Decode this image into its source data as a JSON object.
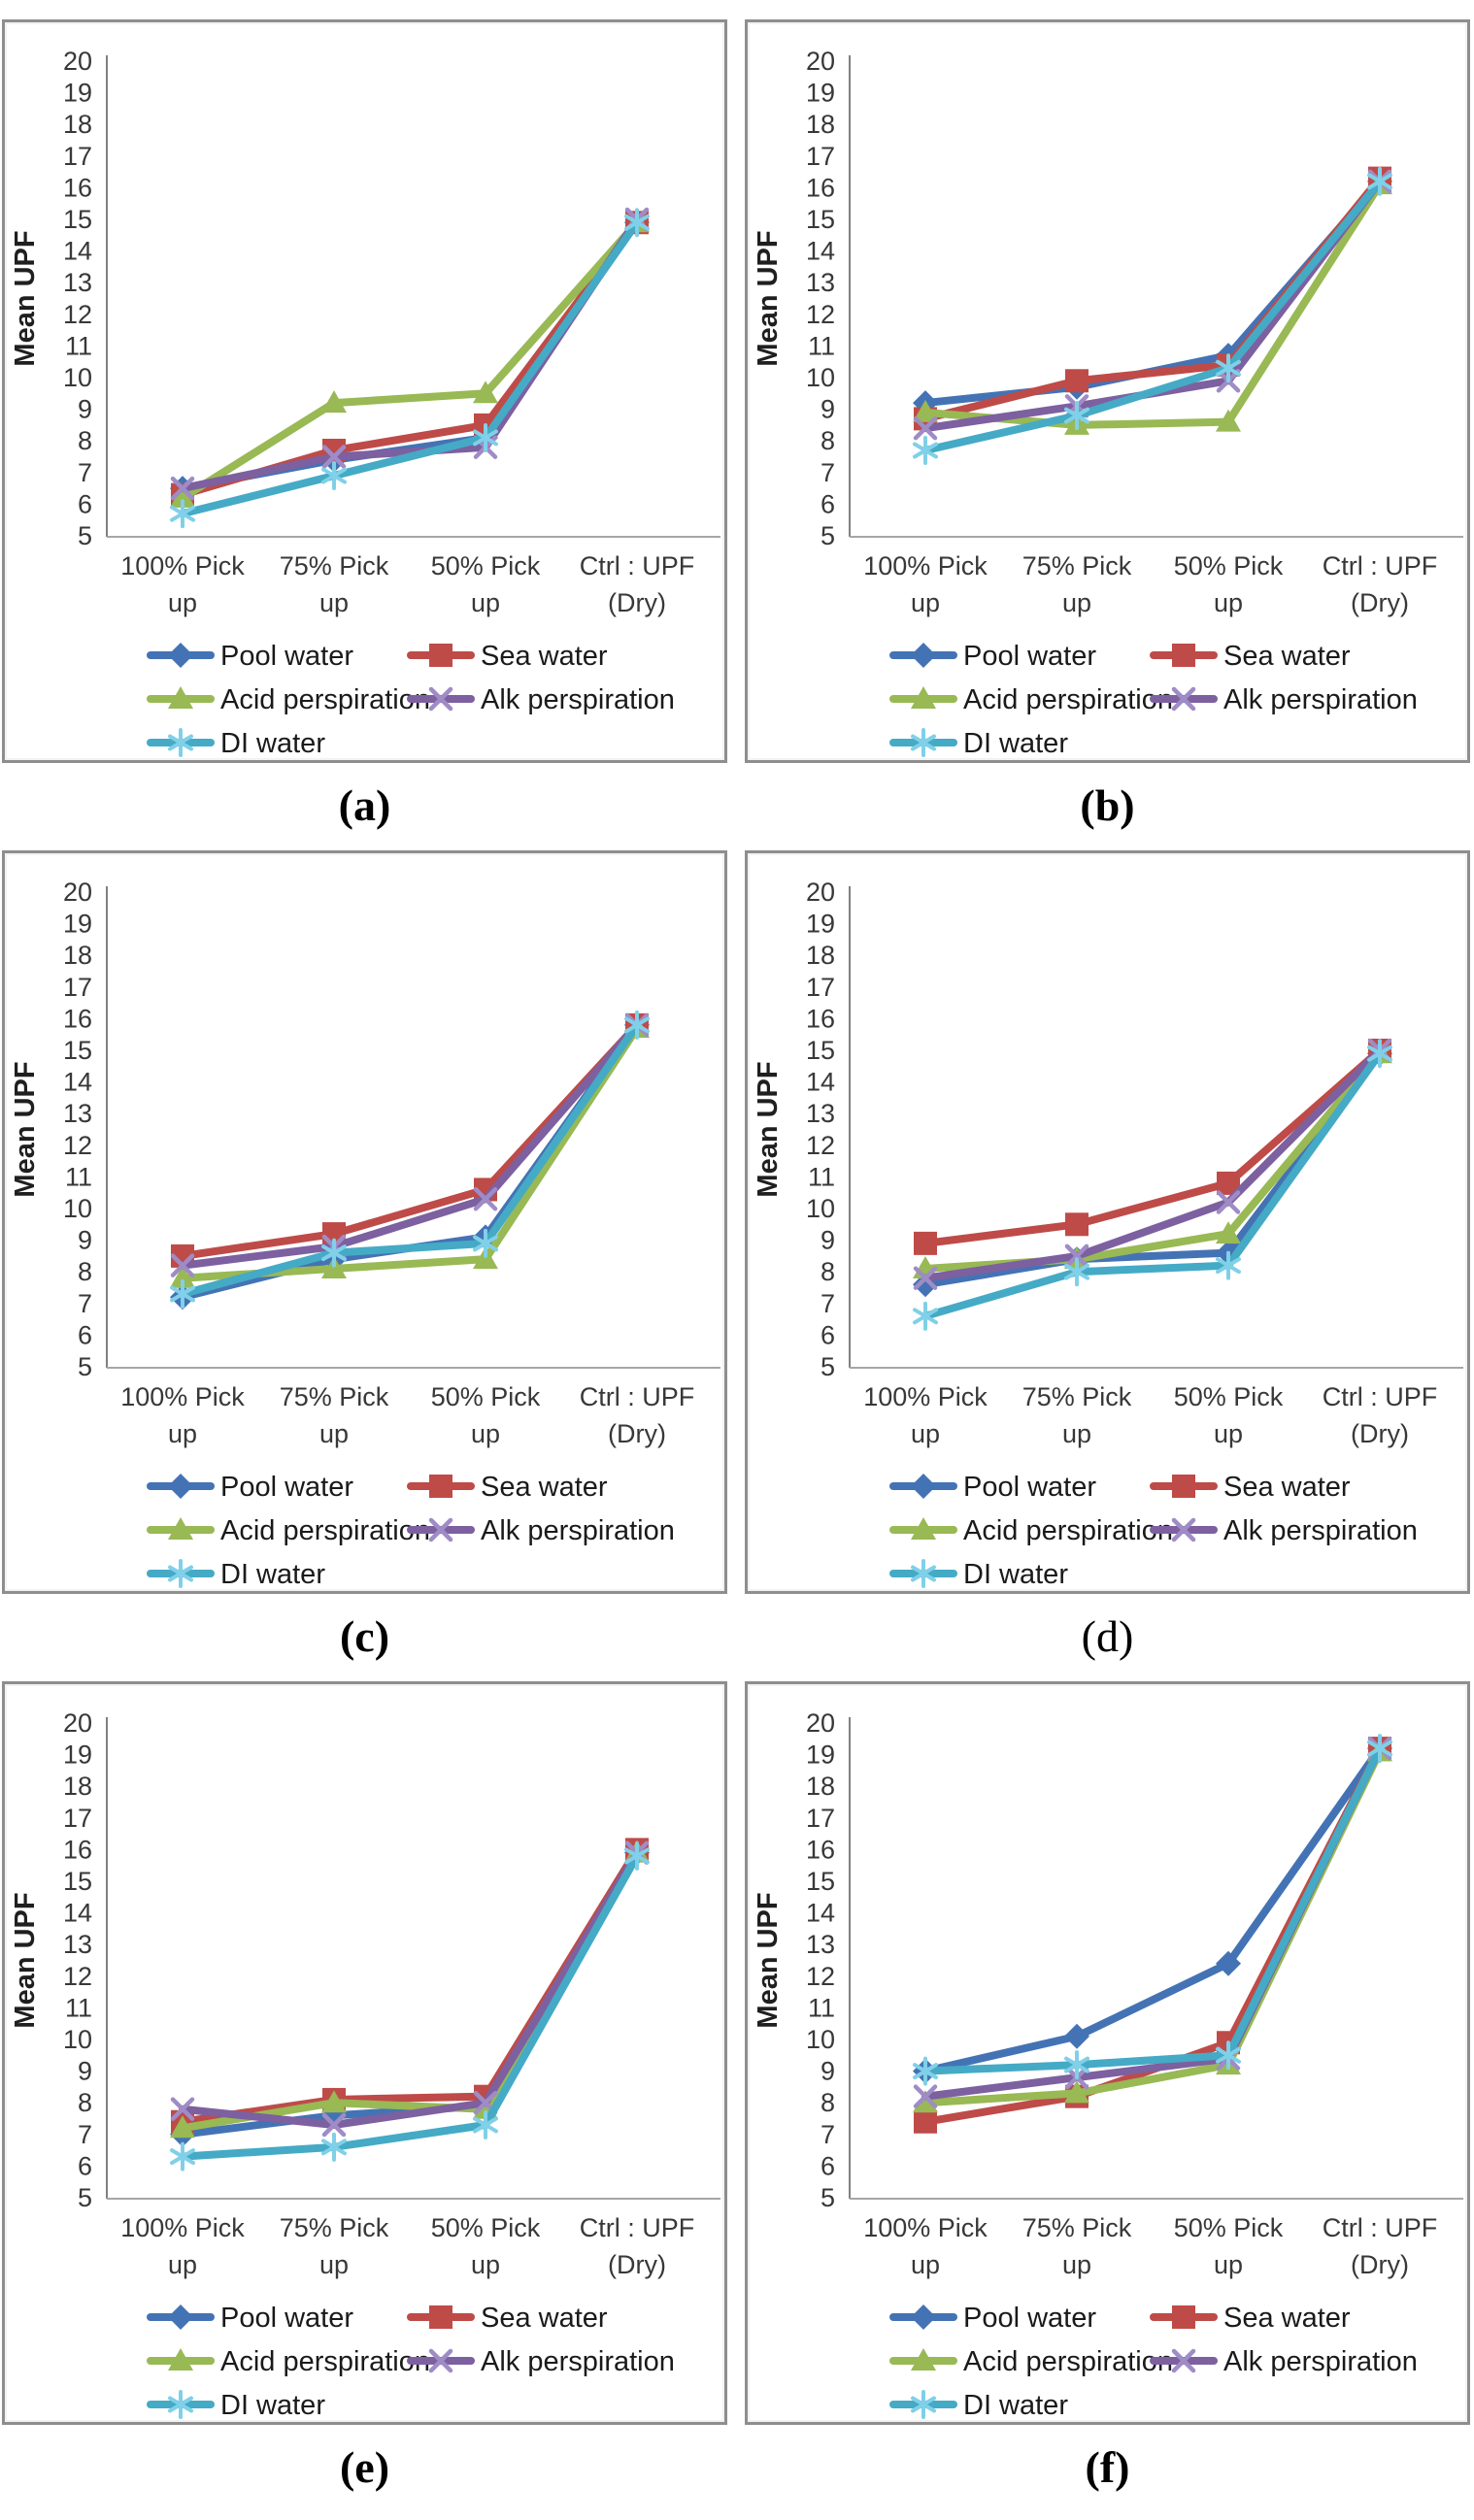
{
  "figure": {
    "type": "multi-panel-line-charts",
    "panels_per_row": 2,
    "ylabel": "Mean UPF",
    "y_axis": {
      "min": 5,
      "max": 20,
      "step": 1
    },
    "categories": [
      "100% Pick up",
      "75% Pick up",
      "50% Pick up",
      "Ctrl : UPF (Dry)"
    ],
    "category_label_lines": [
      [
        "100% Pick",
        "up"
      ],
      [
        "75% Pick",
        "up"
      ],
      [
        "50% Pick",
        "up"
      ],
      [
        "Ctrl : UPF",
        "(Dry)"
      ]
    ],
    "legend_order": [
      [
        "Pool water",
        "Sea water"
      ],
      [
        "Acid perspiration",
        "Alk perspiration"
      ],
      [
        "DI water"
      ]
    ],
    "series_meta": [
      {
        "name": "Pool water",
        "color": "#4473B5",
        "marker_color": "#4473B5",
        "marker": "diamond"
      },
      {
        "name": "Sea water",
        "color": "#BE4B48",
        "marker_color": "#BE4B48",
        "marker": "square"
      },
      {
        "name": "Acid perspiration",
        "color": "#98B954",
        "marker_color": "#98B954",
        "marker": "triangle"
      },
      {
        "name": "Alk perspiration",
        "color": "#7D60A0",
        "marker_color": "#9F8CC6",
        "marker": "x"
      },
      {
        "name": "DI water",
        "color": "#45AAC5",
        "marker_color": "#7FD0E8",
        "marker": "asterisk"
      }
    ]
  },
  "chart_data": [
    {
      "id": "a",
      "caption": "(a)",
      "caption_style": "bold",
      "type": "line",
      "title": "",
      "xlabel": "",
      "ylabel": "Mean UPF",
      "ylim": [
        5,
        20
      ],
      "grid": false,
      "legend_position": "bottom",
      "categories": [
        "100% Pick up",
        "75% Pick up",
        "50% Pick up",
        "Ctrl : UPF (Dry)"
      ],
      "series": [
        {
          "name": "Pool water",
          "values": [
            6.5,
            7.4,
            8.1,
            14.9
          ]
        },
        {
          "name": "Sea water",
          "values": [
            6.3,
            7.7,
            8.5,
            14.9
          ]
        },
        {
          "name": "Acid perspiration",
          "values": [
            6.2,
            9.2,
            9.5,
            14.9
          ]
        },
        {
          "name": "Alk perspiration",
          "values": [
            6.5,
            7.5,
            7.8,
            15.0
          ]
        },
        {
          "name": "DI water",
          "values": [
            5.7,
            6.9,
            8.1,
            14.9
          ]
        }
      ]
    },
    {
      "id": "b",
      "caption": "(b)",
      "caption_style": "bold",
      "type": "line",
      "title": "",
      "xlabel": "",
      "ylabel": "Mean UPF",
      "ylim": [
        5,
        20
      ],
      "grid": false,
      "legend_position": "bottom",
      "categories": [
        "100% Pick up",
        "75% Pick up",
        "50% Pick up",
        "Ctrl : UPF (Dry)"
      ],
      "series": [
        {
          "name": "Pool water",
          "values": [
            9.2,
            9.7,
            10.7,
            16.2
          ]
        },
        {
          "name": "Sea water",
          "values": [
            8.7,
            9.9,
            10.4,
            16.3
          ]
        },
        {
          "name": "Acid perspiration",
          "values": [
            8.9,
            8.5,
            8.6,
            16.1
          ]
        },
        {
          "name": "Alk perspiration",
          "values": [
            8.4,
            9.1,
            9.9,
            16.2
          ]
        },
        {
          "name": "DI water",
          "values": [
            7.7,
            8.8,
            10.3,
            16.2
          ]
        }
      ]
    },
    {
      "id": "c",
      "caption": "(c)",
      "caption_style": "bold",
      "type": "line",
      "title": "",
      "xlabel": "",
      "ylabel": "Mean UPF",
      "ylim": [
        5,
        20
      ],
      "grid": false,
      "legend_position": "bottom",
      "categories": [
        "100% Pick up",
        "75% Pick up",
        "50% Pick up",
        "Ctrl : UPF (Dry)"
      ],
      "series": [
        {
          "name": "Pool water",
          "values": [
            7.2,
            8.4,
            9.1,
            15.8
          ]
        },
        {
          "name": "Sea water",
          "values": [
            8.5,
            9.2,
            10.6,
            15.8
          ]
        },
        {
          "name": "Acid perspiration",
          "values": [
            7.8,
            8.1,
            8.4,
            15.7
          ]
        },
        {
          "name": "Alk perspiration",
          "values": [
            8.2,
            8.8,
            10.3,
            15.8
          ]
        },
        {
          "name": "DI water",
          "values": [
            7.3,
            8.6,
            8.9,
            15.8
          ]
        }
      ]
    },
    {
      "id": "d",
      "caption": "(d)",
      "caption_style": "normal",
      "type": "line",
      "title": "",
      "xlabel": "",
      "ylabel": "Mean UPF",
      "ylim": [
        5,
        20
      ],
      "grid": false,
      "legend_position": "bottom",
      "categories": [
        "100% Pick up",
        "75% Pick up",
        "50% Pick up",
        "Ctrl : UPF (Dry)"
      ],
      "series": [
        {
          "name": "Pool water",
          "values": [
            7.6,
            8.4,
            8.6,
            14.9
          ]
        },
        {
          "name": "Sea water",
          "values": [
            8.9,
            9.5,
            10.8,
            15.0
          ]
        },
        {
          "name": "Acid perspiration",
          "values": [
            8.1,
            8.4,
            9.2,
            14.9
          ]
        },
        {
          "name": "Alk perspiration",
          "values": [
            7.8,
            8.5,
            10.2,
            15.0
          ]
        },
        {
          "name": "DI water",
          "values": [
            6.6,
            8.0,
            8.2,
            14.9
          ]
        }
      ]
    },
    {
      "id": "e",
      "caption": "(e)",
      "caption_style": "bold",
      "type": "line",
      "title": "",
      "xlabel": "",
      "ylabel": "Mean UPF",
      "ylim": [
        5,
        20
      ],
      "grid": false,
      "legend_position": "bottom",
      "categories": [
        "100% Pick up",
        "75% Pick up",
        "50% Pick up",
        "Ctrl : UPF (Dry)"
      ],
      "series": [
        {
          "name": "Pool water",
          "values": [
            7.0,
            7.6,
            7.9,
            15.9
          ]
        },
        {
          "name": "Sea water",
          "values": [
            7.4,
            8.1,
            8.2,
            16.0
          ]
        },
        {
          "name": "Acid perspiration",
          "values": [
            7.2,
            8.0,
            7.8,
            15.9
          ]
        },
        {
          "name": "Alk perspiration",
          "values": [
            7.8,
            7.3,
            8.0,
            15.9
          ]
        },
        {
          "name": "DI water",
          "values": [
            6.3,
            6.6,
            7.3,
            15.8
          ]
        }
      ]
    },
    {
      "id": "f",
      "caption": "(f)",
      "caption_style": "bold",
      "type": "line",
      "title": "",
      "xlabel": "",
      "ylabel": "Mean UPF",
      "ylim": [
        5,
        20
      ],
      "grid": false,
      "legend_position": "bottom",
      "categories": [
        "100% Pick up",
        "75% Pick up",
        "50% Pick up",
        "Ctrl : UPF (Dry)"
      ],
      "series": [
        {
          "name": "Pool water",
          "values": [
            9.0,
            10.1,
            12.4,
            19.2
          ]
        },
        {
          "name": "Sea water",
          "values": [
            7.4,
            8.2,
            9.9,
            19.2
          ]
        },
        {
          "name": "Acid perspiration",
          "values": [
            8.0,
            8.3,
            9.2,
            19.1
          ]
        },
        {
          "name": "Alk perspiration",
          "values": [
            8.2,
            8.8,
            9.4,
            19.2
          ]
        },
        {
          "name": "DI water",
          "values": [
            9.0,
            9.2,
            9.5,
            19.2
          ]
        }
      ]
    }
  ]
}
